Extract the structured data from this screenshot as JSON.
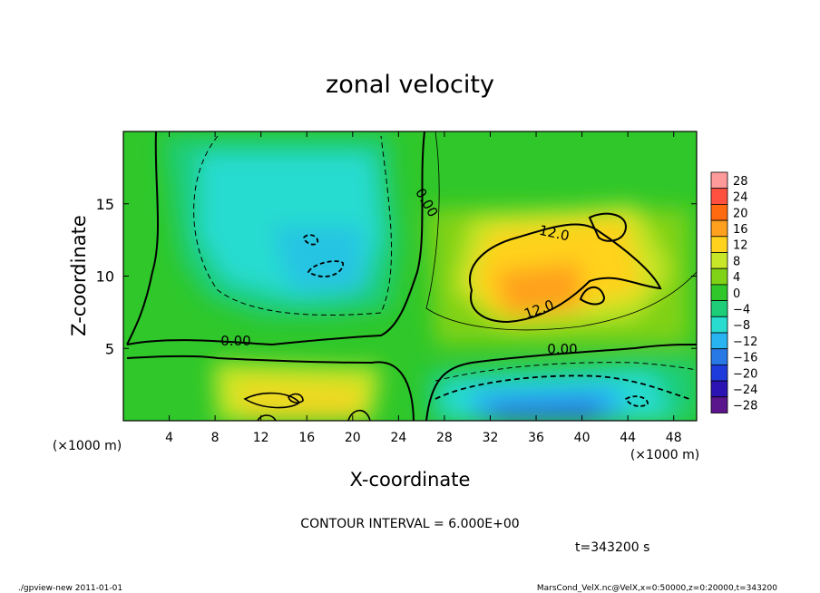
{
  "chart_data": {
    "type": "heatmap",
    "title": "zonal velocity",
    "xlabel": "X-coordinate",
    "ylabel": "Z-coordinate",
    "x_unit_label": "(×1000 m)",
    "y_unit_label": "(×1000 m)",
    "xlim": [
      0,
      50
    ],
    "ylim": [
      0,
      20
    ],
    "x_ticks": [
      4,
      8,
      12,
      16,
      20,
      24,
      28,
      32,
      36,
      40,
      44,
      48
    ],
    "y_ticks": [
      5,
      10,
      15
    ],
    "contour_interval_text": "CONTOUR INTERVAL = 6.000E+00",
    "time_text": "t=343200 s",
    "contour_labels": [
      "0.00",
      "0.00",
      "0.00",
      "12.0",
      "12.0"
    ],
    "colorbar": {
      "levels": [
        28,
        24,
        20,
        16,
        12,
        8,
        4,
        0,
        -4,
        -8,
        -12,
        -16,
        -20,
        -24,
        -28
      ],
      "labels": [
        "28",
        "24",
        "20",
        "16",
        "12",
        "8",
        "4",
        "0",
        "−4",
        "−8",
        "−12",
        "−16",
        "−20",
        "−24",
        "−28"
      ],
      "colors": [
        "#ff9a9a",
        "#ff5040",
        "#ff6a10",
        "#ffa01e",
        "#ffd21e",
        "#c8e628",
        "#7fd214",
        "#2fc72a",
        "#1ecd78",
        "#28dcd0",
        "#28b4f0",
        "#2878e6",
        "#1e3cdc",
        "#2c14b4",
        "#5a148c"
      ]
    },
    "field_samples": [
      {
        "x": 3,
        "z": 17,
        "u": 2
      },
      {
        "x": 16,
        "z": 13,
        "u": -9
      },
      {
        "x": 17,
        "z": 10,
        "u": -9
      },
      {
        "x": 14,
        "z": 2,
        "u": 6
      },
      {
        "x": 20,
        "z": 1,
        "u": 8
      },
      {
        "x": 27,
        "z": 10,
        "u": 2
      },
      {
        "x": 34,
        "z": 8,
        "u": 16
      },
      {
        "x": 40,
        "z": 12,
        "u": 13
      },
      {
        "x": 36,
        "z": 1,
        "u": -16
      },
      {
        "x": 45,
        "z": 2,
        "u": -10
      },
      {
        "x": 46,
        "z": 12,
        "u": 6
      }
    ]
  },
  "footer": {
    "left": "./gpview-new   2011-01-01",
    "right": "MarsCond_VelX.nc@VelX,x=0:50000,z=0:20000,t=343200"
  }
}
